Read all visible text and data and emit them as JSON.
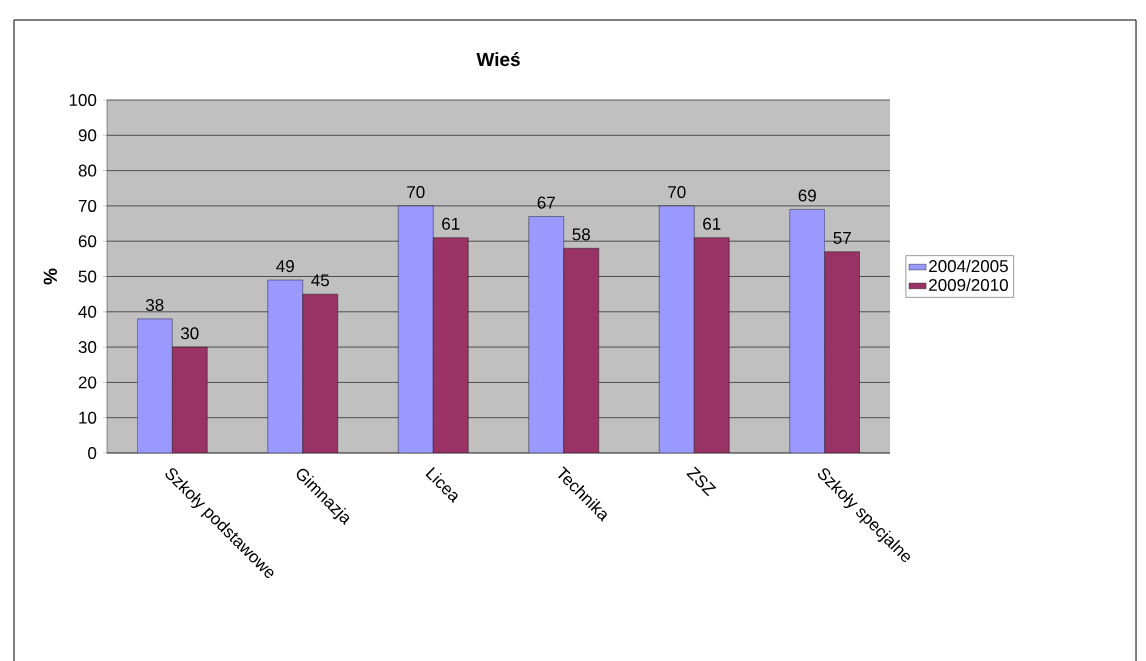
{
  "chart_data": {
    "type": "bar",
    "title": "Wieś",
    "ylabel": "%",
    "categories": [
      "Szkoły podstawowe",
      "Gimnazja",
      "Licea",
      "Technika",
      "ZSZ",
      "Szkoły specjalne"
    ],
    "series": [
      {
        "name": "2004/2005",
        "color": "#9999ff",
        "values": [
          38,
          49,
          70,
          67,
          70,
          69
        ]
      },
      {
        "name": "2009/2010",
        "color": "#993366",
        "values": [
          30,
          45,
          61,
          58,
          61,
          57
        ]
      }
    ],
    "ylim": [
      0,
      100
    ],
    "yticks": [
      0,
      10,
      20,
      30,
      40,
      50,
      60,
      70,
      80,
      90,
      100
    ],
    "grid": "y",
    "legend": "right",
    "data_labels": true
  }
}
